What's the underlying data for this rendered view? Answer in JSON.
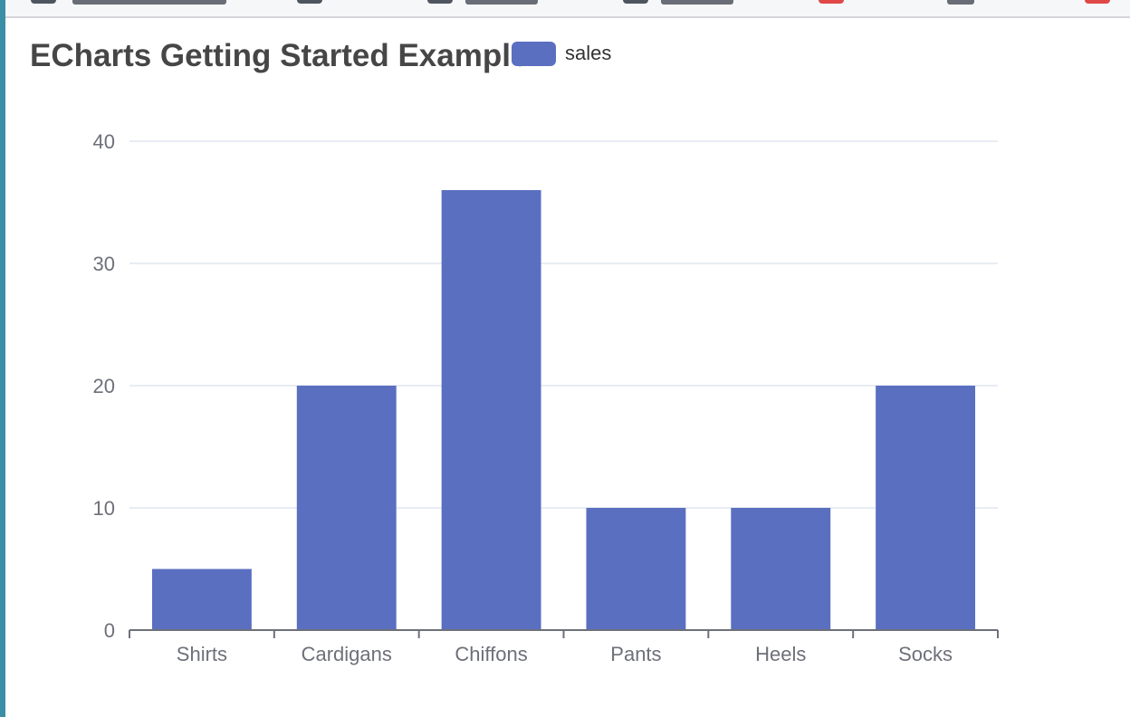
{
  "colors": {
    "series": "#5a6fc0",
    "axis": "#6e7079",
    "grid": "#e0e6f1",
    "title": "#464646",
    "legend_text": "#333333"
  },
  "chart_data": {
    "type": "bar",
    "title": "ECharts Getting Started Example",
    "legend": [
      "sales"
    ],
    "legend_placement": "top-center",
    "categories": [
      "Shirts",
      "Cardigans",
      "Chiffons",
      "Pants",
      "Heels",
      "Socks"
    ],
    "series": [
      {
        "name": "sales",
        "values": [
          5,
          20,
          36,
          10,
          10,
          20
        ]
      }
    ],
    "y_ticks": [
      "0",
      "10",
      "20",
      "30",
      "40"
    ],
    "ylim": [
      0,
      40
    ],
    "grid": true
  }
}
